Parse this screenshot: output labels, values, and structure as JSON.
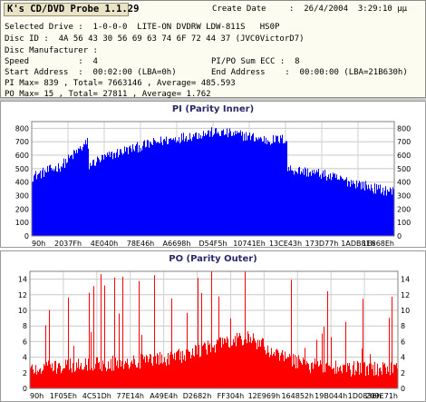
{
  "app": {
    "title": "K's CD/DVD Probe 1.1.29"
  },
  "info": {
    "create_date_label": "Create Date",
    "create_date_value": ":  26/4/2004  3:29:10 μμ",
    "selected_drive": "Selected Drive :  1-0-0-0  LITE-ON DVDRW LDW-811S   HS0P",
    "disc_id": "Disc ID :  4A 56 43 30 56 69 63 74 6F 72 44 37 (JVC0VictorD7)",
    "disc_manufacturer": "Disc Manufacturer :",
    "speed": "Speed          :  4",
    "pipo_sum_ecc": "PI/PO Sum ECC :  8",
    "start_address": "Start Address  :  00:02:00 (LBA=0h)",
    "end_address": "End Address    :  00:00:00 (LBA=21B630h)",
    "pi_stats": "PI Max= 839 , Total= 7663146 , Average= 485.593",
    "po_stats": "PO Max= 15 , Total= 27811 , Average= 1.762"
  },
  "chart_data": [
    {
      "type": "bar",
      "title": "PI (Parity Inner)",
      "ylim": [
        0,
        850
      ],
      "y_ticks": [
        0,
        100,
        200,
        300,
        400,
        500,
        600,
        700,
        800
      ],
      "x_tick_labels": [
        "90h",
        "2037Fh",
        "4E040h",
        "78E46h",
        "A6698h",
        "D54F5h",
        "10741Eh",
        "13CE43h",
        "173D77h",
        "1ADB81h",
        "1E868Eh"
      ],
      "grid": true,
      "color": "#0000ff",
      "profile_x": [
        0,
        0.08,
        0.13,
        0.155,
        0.156,
        0.18,
        0.25,
        0.35,
        0.45,
        0.5,
        0.55,
        0.6,
        0.65,
        0.7,
        0.705,
        0.706,
        0.75,
        0.8,
        0.85,
        0.9,
        0.95,
        1.0
      ],
      "profile_y": [
        440,
        520,
        640,
        700,
        520,
        560,
        630,
        700,
        750,
        770,
        760,
        740,
        710,
        720,
        700,
        500,
        480,
        460,
        420,
        390,
        350,
        330
      ],
      "noise": 40,
      "series": [
        {
          "name": "PI",
          "max": 839,
          "total": 7663146,
          "average": 485.593
        }
      ]
    },
    {
      "type": "bar",
      "title": "PO (Parity Outer)",
      "ylim": [
        0,
        15
      ],
      "y_ticks": [
        0,
        2,
        4,
        6,
        8,
        10,
        12,
        14
      ],
      "x_tick_labels": [
        "90h",
        "1F05Eh",
        "4C51Dh",
        "77E14h",
        "A49E4h",
        "D2682h",
        "FF304h",
        "12E969h",
        "164852h",
        "19B044h",
        "1D0836h",
        "209E71h"
      ],
      "grid": true,
      "color": "#ff0000",
      "profile_x": [
        0,
        0.15,
        0.3,
        0.4,
        0.5,
        0.6,
        0.68,
        0.75,
        0.85,
        1.0
      ],
      "profile_y": [
        2.5,
        3,
        3.5,
        4,
        5.5,
        6.5,
        4,
        3,
        2.5,
        2.5
      ],
      "noise": 1.0,
      "spike_rate": 0.1,
      "spike_max": 12,
      "series": [
        {
          "name": "PO",
          "max": 15,
          "total": 27811,
          "average": 1.762
        }
      ]
    }
  ]
}
